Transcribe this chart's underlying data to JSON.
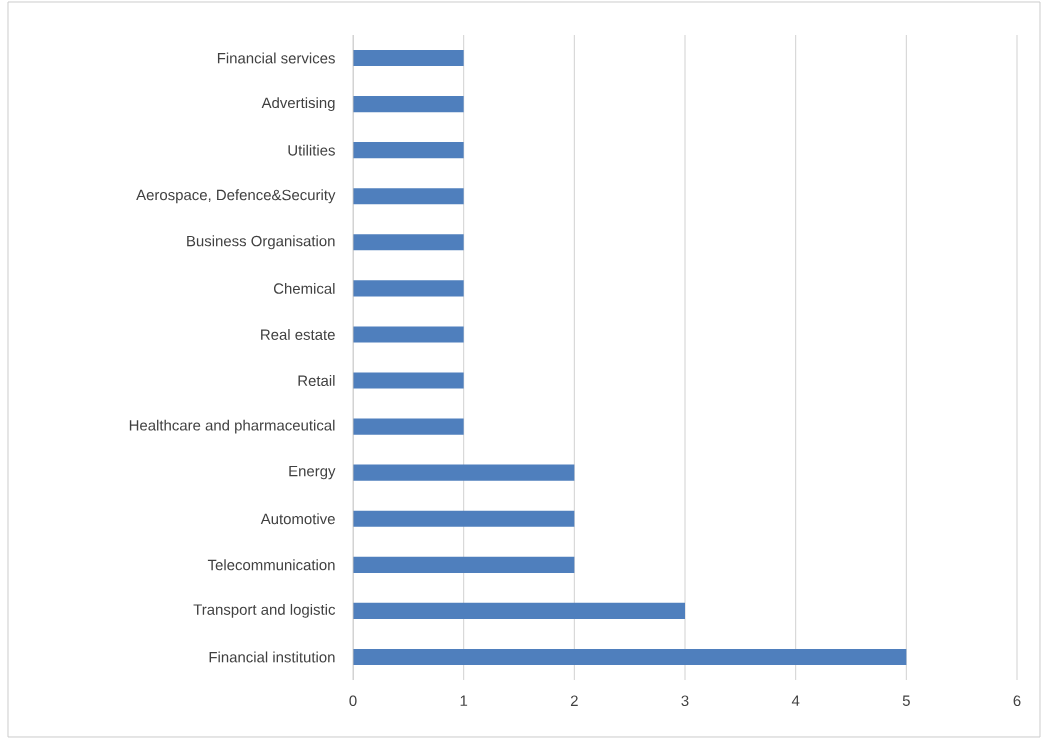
{
  "chart_data": {
    "type": "bar",
    "orientation": "horizontal",
    "categories": [
      "Financial services",
      "Advertising",
      "Utilities",
      "Aerospace, Defence&Security",
      "Business Organisation",
      "Chemical",
      "Real estate",
      "Retail",
      "Healthcare and pharmaceutical",
      "Energy",
      "Automotive",
      "Telecommunication",
      "Transport and logistic",
      "Financial institution"
    ],
    "values": [
      1,
      1,
      1,
      1,
      1,
      1,
      1,
      1,
      1,
      2,
      2,
      2,
      3,
      5
    ],
    "color": "#4f7fbd",
    "xlim": [
      0,
      6
    ],
    "xticks": [
      0,
      1,
      2,
      3,
      4,
      5,
      6
    ],
    "grid": "x"
  }
}
